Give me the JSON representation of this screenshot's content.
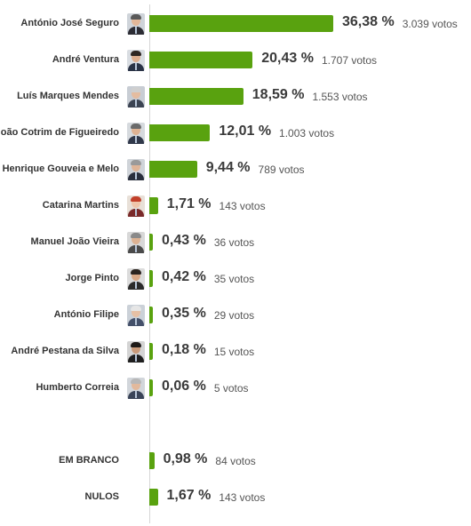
{
  "chart_data": {
    "type": "bar",
    "orientation": "horizontal",
    "bar_color": "#59a20f",
    "value_unit": "%",
    "categories": [
      "António José Seguro",
      "André Ventura",
      "Luís Marques Mendes",
      "João Cotrim de Figueiredo",
      "Henrique Gouveia e Melo",
      "Catarina Martins",
      "Manuel João Vieira",
      "Jorge Pinto",
      "António Filipe",
      "André Pestana da Silva",
      "Humberto Correia",
      "EM BRANCO",
      "NULOS"
    ],
    "values": [
      36.38,
      20.43,
      18.59,
      12.01,
      9.44,
      1.71,
      0.43,
      0.42,
      0.35,
      0.18,
      0.06,
      0.98,
      1.67
    ],
    "value_labels": [
      "36,38 %",
      "20,43 %",
      "18,59 %",
      "12,01 %",
      "9,44 %",
      "1,71 %",
      "0,43 %",
      "0,42 %",
      "0,35 %",
      "0,18 %",
      "0,06 %",
      "0,98 %",
      "1,67 %"
    ],
    "vote_labels": [
      "3.039 votos",
      "1.707 votos",
      "1.553 votos",
      "1.003 votos",
      "789 votos",
      "143 votos",
      "36 votos",
      "35 votos",
      "29 votos",
      "15 votos",
      "5 votos",
      "84 votos",
      "143 votos"
    ],
    "avatars": [
      {
        "icon": "candidate-photo-icon",
        "hair": "#5a5a5a",
        "suit": "#2c2c34",
        "skin": "#e2b799",
        "bg": "#cfd4da"
      },
      {
        "icon": "candidate-photo-icon",
        "hair": "#2d2622",
        "suit": "#2a3346",
        "skin": "#dcae8f",
        "bg": "#d9dde2"
      },
      {
        "icon": "candidate-photo-icon",
        "hair": "#cfcfcf",
        "suit": "#3b4352",
        "skin": "#e4bca0",
        "bg": "#c8cdd4"
      },
      {
        "icon": "candidate-photo-icon",
        "hair": "#6b6b6b",
        "suit": "#30384a",
        "skin": "#deb394",
        "bg": "#d6dade"
      },
      {
        "icon": "candidate-photo-icon",
        "hair": "#9a9a9a",
        "suit": "#2a2f3d",
        "skin": "#dfb598",
        "bg": "#d0d4d9"
      },
      {
        "icon": "candidate-photo-icon",
        "hair": "#c2402a",
        "suit": "#7a2a2a",
        "skin": "#efc6ab",
        "bg": "#e8e0d8"
      },
      {
        "icon": "candidate-photo-icon",
        "hair": "#8a8a8a",
        "suit": "#4a4a4a",
        "skin": "#dcb293",
        "bg": "#d8d8d8"
      },
      {
        "icon": "candidate-photo-icon",
        "hair": "#2b2420",
        "suit": "#2b2b2b",
        "skin": "#d9a988",
        "bg": "#dcdcdc"
      },
      {
        "icon": "candidate-photo-icon",
        "hair": "#e6e6e6",
        "suit": "#44506a",
        "skin": "#e6c0a5",
        "bg": "#cbd1d8"
      },
      {
        "icon": "candidate-photo-icon",
        "hair": "#1e1a18",
        "suit": "#1f1f1f",
        "skin": "#c99a7a",
        "bg": "#d4d4d4"
      },
      {
        "icon": "candidate-photo-icon",
        "hair": "#b8b8b8",
        "suit": "#3a4458",
        "skin": "#e2b99c",
        "bg": "#d2d6db"
      },
      null,
      null
    ]
  }
}
